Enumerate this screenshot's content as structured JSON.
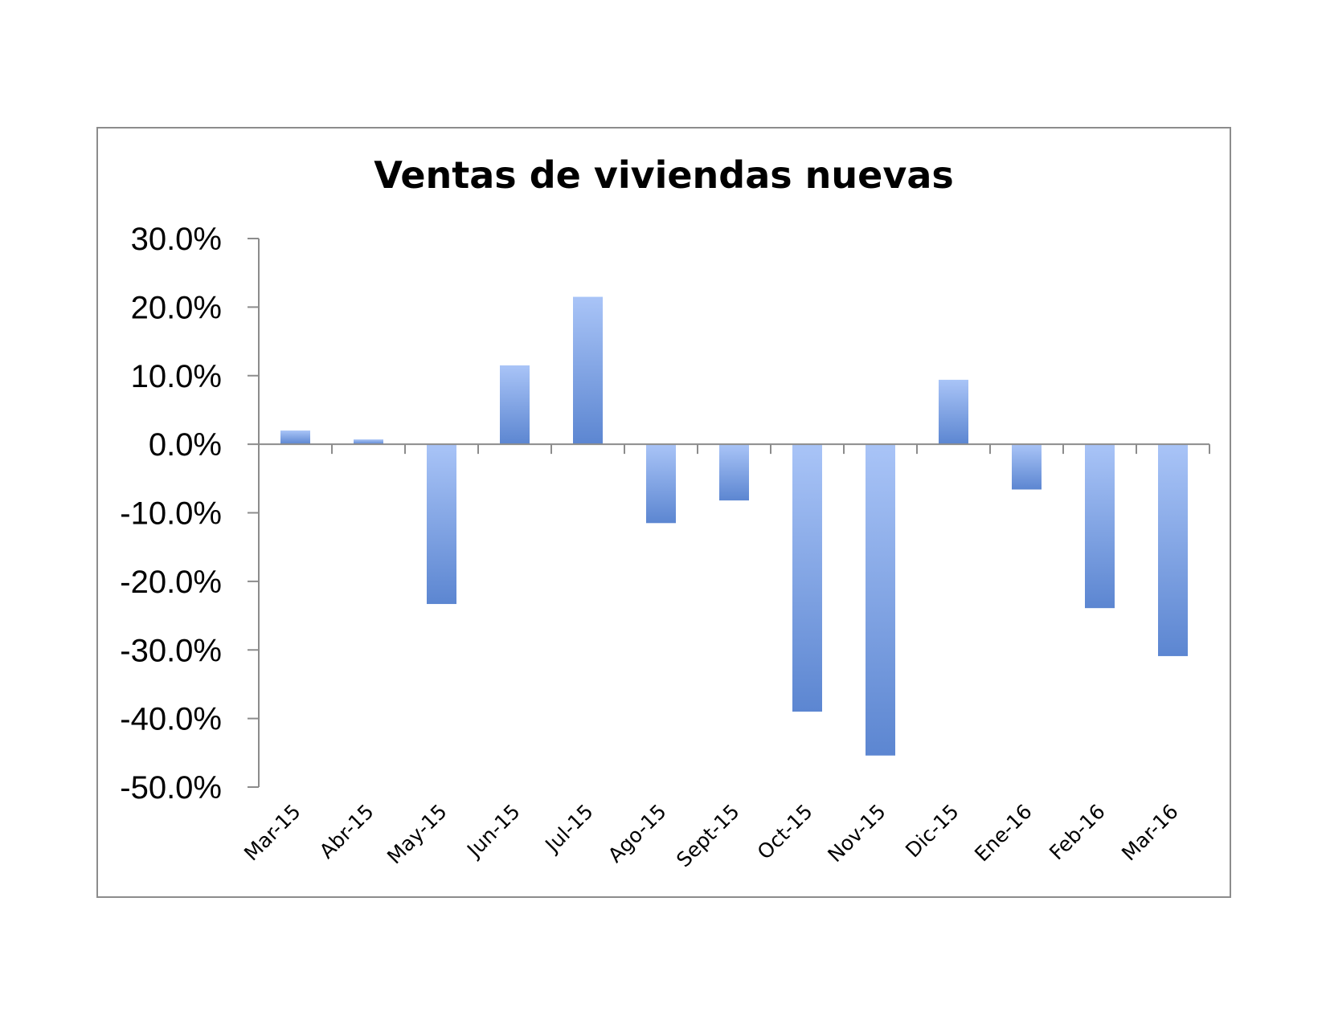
{
  "chart_data": {
    "type": "bar",
    "title": "Ventas de viviendas nuevas",
    "xlabel": "",
    "ylabel": "",
    "categories": [
      "Mar-15",
      "Abr-15",
      "May-15",
      "Jun-15",
      "Jul-15",
      "Ago-15",
      "Sept-15",
      "Oct-15",
      "Nov-15",
      "Dic-15",
      "Ene-16",
      "Feb-16",
      "Mar-16"
    ],
    "values": [
      2.0,
      0.7,
      -23.3,
      11.5,
      21.5,
      -11.5,
      -8.2,
      -39.0,
      -45.4,
      9.4,
      -6.6,
      -23.9,
      -30.9
    ],
    "unit": "%",
    "ylim": [
      -50,
      30
    ],
    "yticks": [
      "30.0%",
      "20.0%",
      "10.0%",
      "0.0%",
      "-10.0%",
      "-20.0%",
      "-30.0%",
      "-40.0%",
      "-50.0%"
    ],
    "ytick_values": [
      30,
      20,
      10,
      0,
      -10,
      -20,
      -30,
      -40,
      -50
    ],
    "grid": false,
    "legend": "none",
    "colors": {
      "bar_light": "#a9c4f7",
      "bar_dark": "#5c86d1",
      "axis": "#8c8c8c",
      "frame": "#8c8c8c"
    }
  }
}
